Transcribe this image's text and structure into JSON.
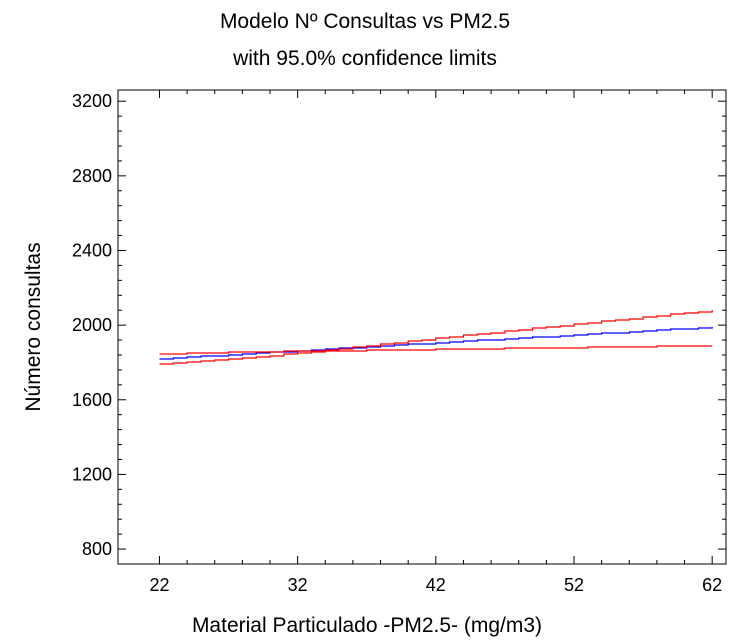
{
  "chart_data": {
    "type": "line",
    "title": "Modelo Nº Consultas vs PM2.5",
    "subtitle": "with 95.0% confidence limits",
    "xlabel": "Material Particulado -PM2.5- (mg/m3)",
    "ylabel": "Número consultas",
    "xlim": [
      19,
      63
    ],
    "ylim": [
      720,
      3260
    ],
    "xticks": [
      22,
      32,
      42,
      52,
      62
    ],
    "yticks": [
      800,
      1200,
      1600,
      2000,
      2400,
      2800,
      3200
    ],
    "grid": false,
    "series": [
      {
        "color": "#0000ff",
        "x": [
          22,
          62
        ],
        "y": [
          1820,
          1990
        ]
      },
      {
        "color": "#ff0000",
        "x": [
          22,
          24,
          26,
          28,
          30,
          32,
          34,
          36,
          38,
          40,
          42,
          44,
          46,
          48,
          50,
          52,
          54,
          56,
          58,
          60,
          62
        ],
        "y": [
          1790,
          1802,
          1813,
          1824,
          1836,
          1850,
          1866,
          1882,
          1898,
          1914,
          1930,
          1945,
          1960,
          1975,
          1990,
          2005,
          2020,
          2035,
          2050,
          2065,
          2080
        ]
      },
      {
        "color": "#ff0000",
        "x": [
          22,
          24,
          26,
          28,
          30,
          32,
          34,
          36,
          38,
          40,
          42,
          44,
          46,
          48,
          50,
          52,
          54,
          56,
          58,
          60,
          62
        ],
        "y": [
          1845,
          1850,
          1853,
          1856,
          1858,
          1860,
          1862,
          1864,
          1866,
          1868,
          1870,
          1872,
          1874,
          1876,
          1878,
          1880,
          1882,
          1884,
          1886,
          1888,
          1890
        ]
      }
    ]
  }
}
